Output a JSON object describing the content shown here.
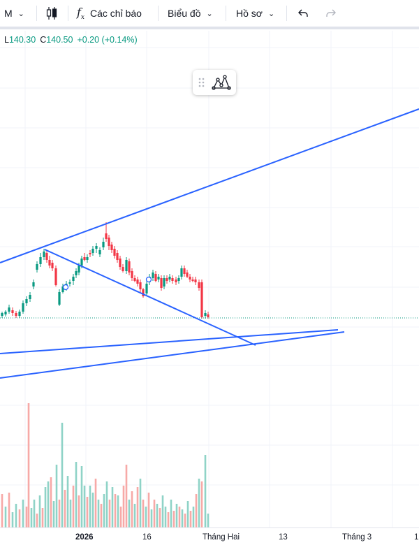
{
  "toolbar": {
    "interval": "M",
    "indicators_label": "Các chỉ báo",
    "chart_label": "Biểu đồ",
    "profile_label": "Hồ sơ"
  },
  "legend": {
    "low_key": "L",
    "low_value": "140.30",
    "close_key": "C",
    "close_value": "140.50",
    "change": "+0.20 (+0.14%)"
  },
  "colors": {
    "up": "#089981",
    "down": "#f23645",
    "up_volume": "#8fd3c7",
    "down_volume": "#f7a9a7",
    "trendline": "#2962ff"
  },
  "xaxis": {
    "labels": [
      "2026",
      "16",
      "Tháng Hai",
      "13",
      "Tháng 3",
      "1"
    ]
  }
}
